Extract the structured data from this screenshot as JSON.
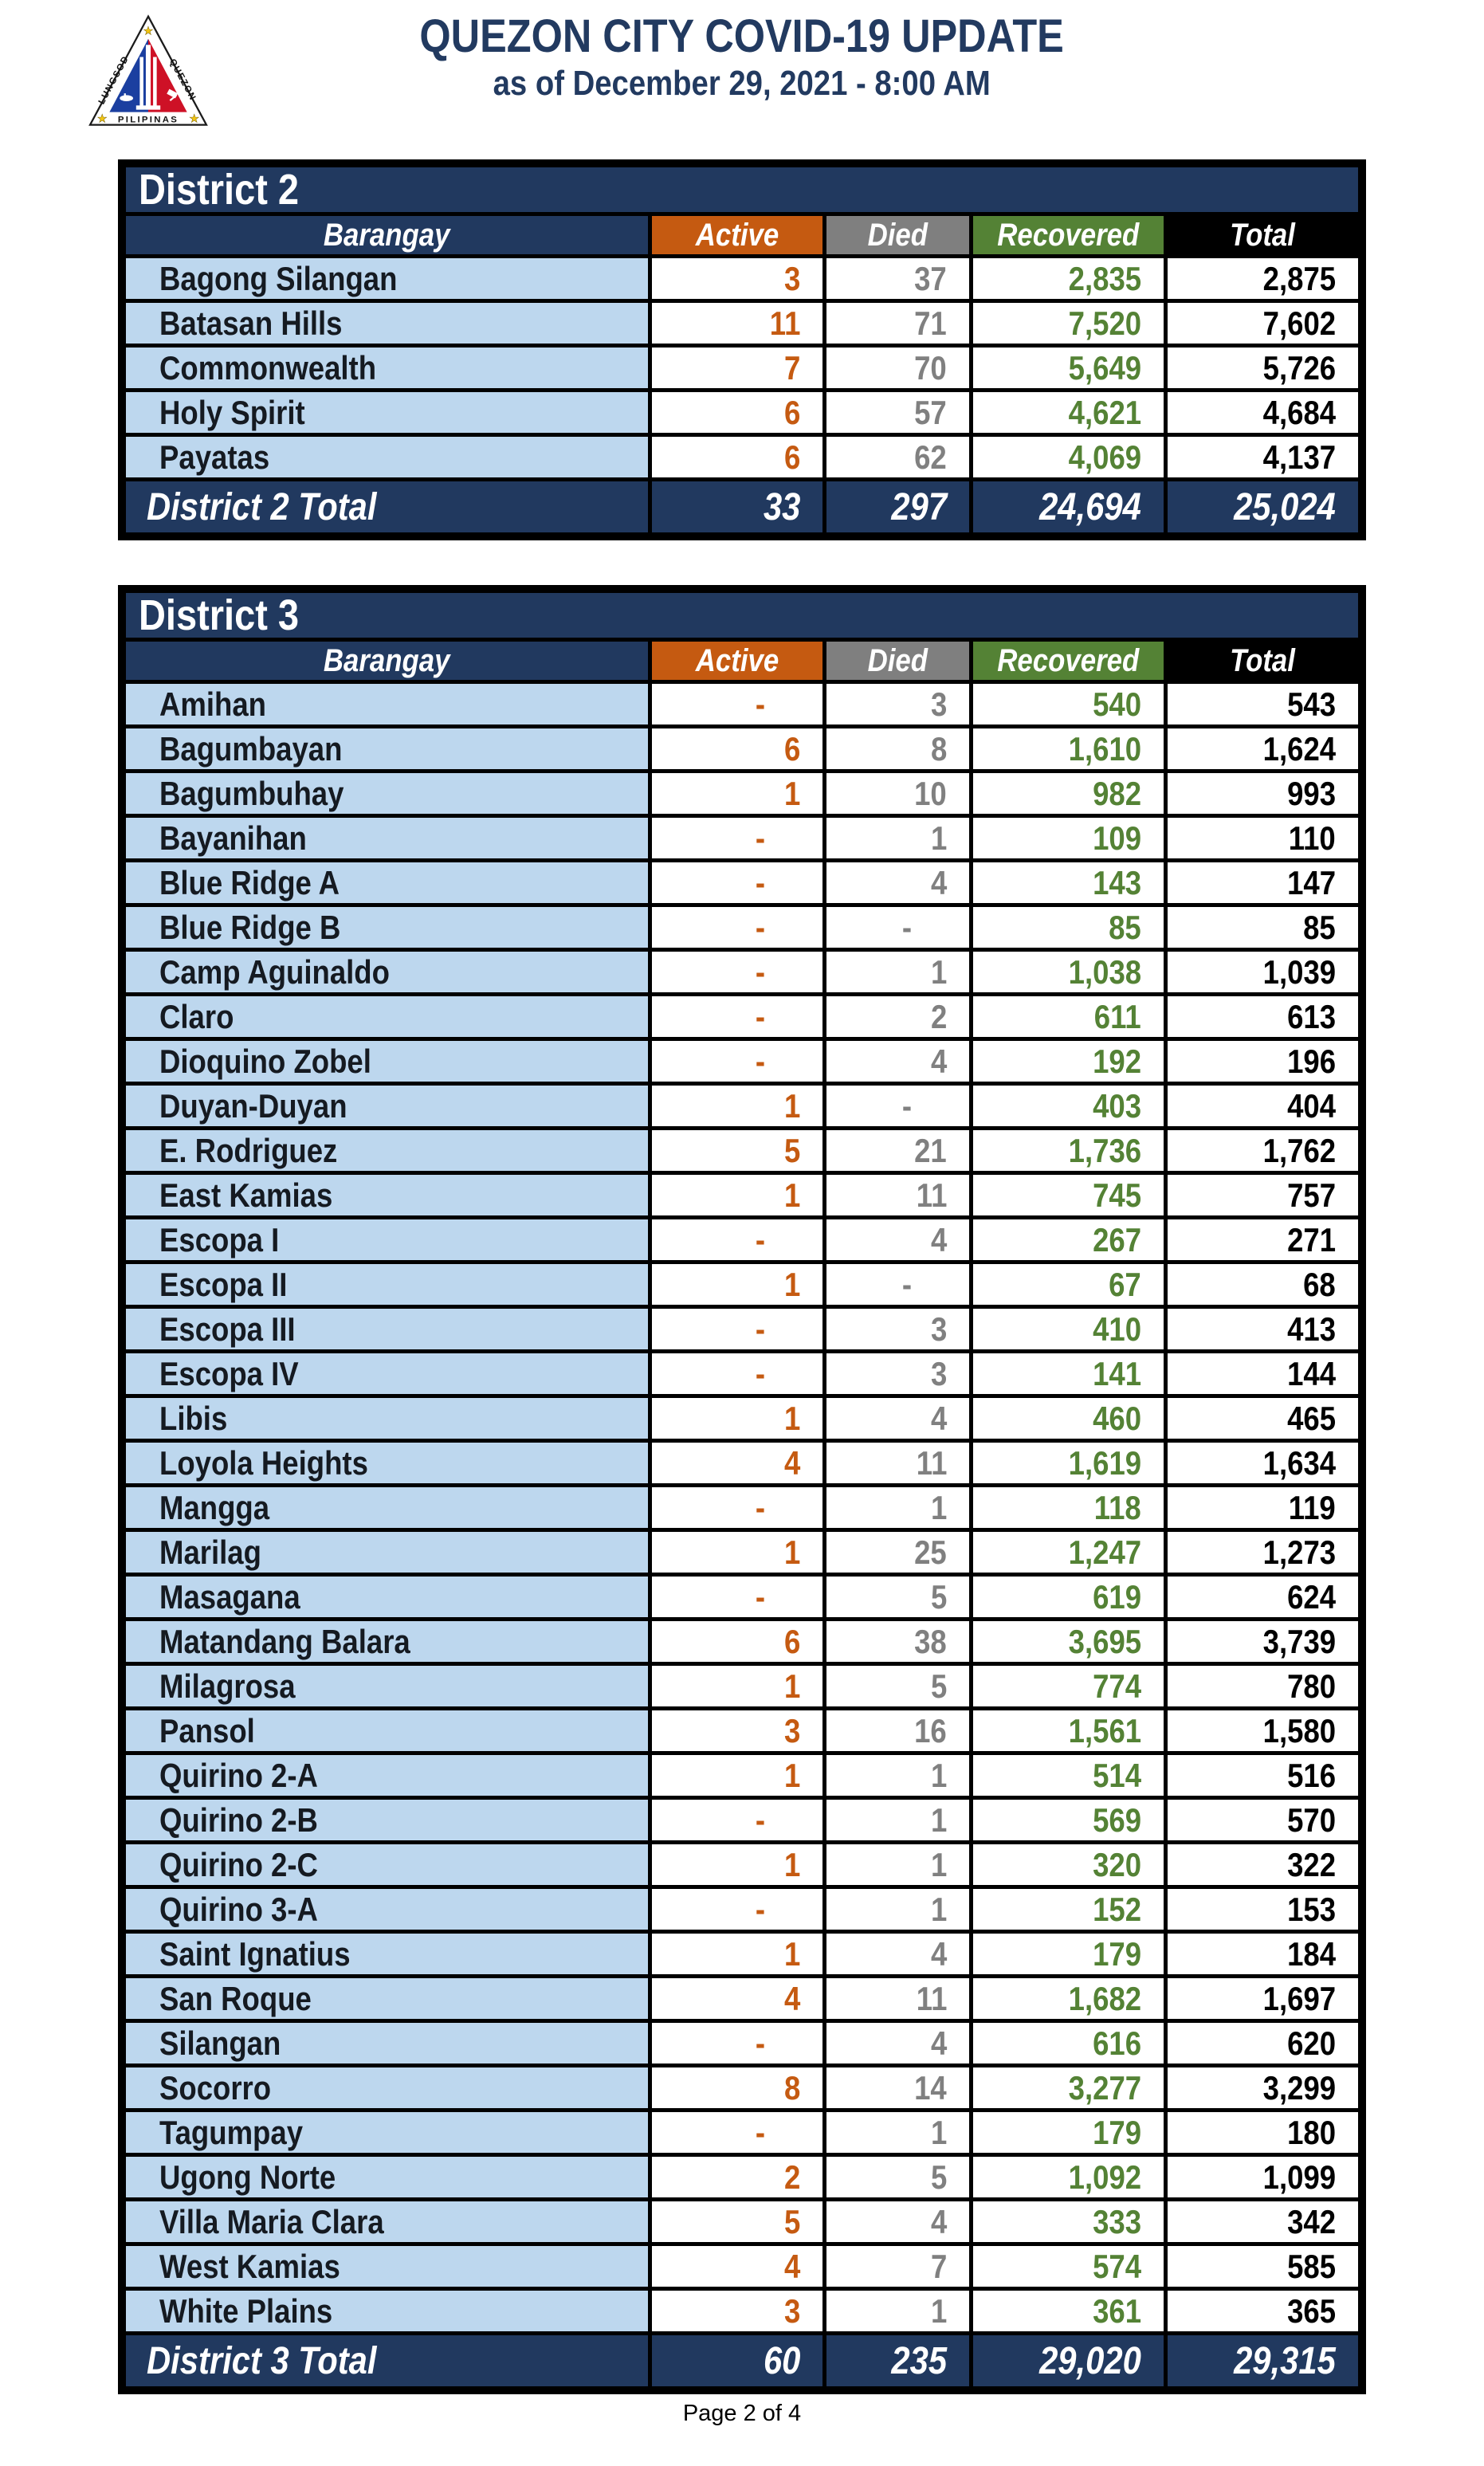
{
  "header": {
    "title": "QUEZON CITY COVID-19 UPDATE",
    "subtitle": "as of December 29, 2021 - 8:00 AM",
    "seal": {
      "icon": "quezon-city-seal",
      "text_left": "LUNGSOD",
      "text_right": "QUEZON",
      "text_bottom": "PILIPINAS"
    }
  },
  "columns": [
    "Barangay",
    "Active",
    "Died",
    "Recovered",
    "Total"
  ],
  "colors": {
    "navy": "#21395f",
    "row_blue": "#bdd7ee",
    "active_orange": "#c55a11",
    "died_gray_header": "#7f7f7f",
    "died_gray_value": "#808080",
    "recovered_green": "#548235",
    "total_black": "#000000"
  },
  "districts": [
    {
      "name": "District 2",
      "rows": [
        [
          "Bagong Silangan",
          "3",
          "37",
          "2,835",
          "2,875"
        ],
        [
          "Batasan Hills",
          "11",
          "71",
          "7,520",
          "7,602"
        ],
        [
          "Commonwealth",
          "7",
          "70",
          "5,649",
          "5,726"
        ],
        [
          "Holy Spirit",
          "6",
          "57",
          "4,621",
          "4,684"
        ],
        [
          "Payatas",
          "6",
          "62",
          "4,069",
          "4,137"
        ]
      ],
      "total": [
        "District 2 Total",
        "33",
        "297",
        "24,694",
        "25,024"
      ]
    },
    {
      "name": "District 3",
      "rows": [
        [
          "Amihan",
          "-",
          "3",
          "540",
          "543"
        ],
        [
          "Bagumbayan",
          "6",
          "8",
          "1,610",
          "1,624"
        ],
        [
          "Bagumbuhay",
          "1",
          "10",
          "982",
          "993"
        ],
        [
          "Bayanihan",
          "-",
          "1",
          "109",
          "110"
        ],
        [
          "Blue Ridge A",
          "-",
          "4",
          "143",
          "147"
        ],
        [
          "Blue Ridge B",
          "-",
          "-",
          "85",
          "85"
        ],
        [
          "Camp Aguinaldo",
          "-",
          "1",
          "1,038",
          "1,039"
        ],
        [
          "Claro",
          "-",
          "2",
          "611",
          "613"
        ],
        [
          "Dioquino Zobel",
          "-",
          "4",
          "192",
          "196"
        ],
        [
          "Duyan-Duyan",
          "1",
          "-",
          "403",
          "404"
        ],
        [
          "E. Rodriguez",
          "5",
          "21",
          "1,736",
          "1,762"
        ],
        [
          "East Kamias",
          "1",
          "11",
          "745",
          "757"
        ],
        [
          "Escopa I",
          "-",
          "4",
          "267",
          "271"
        ],
        [
          "Escopa II",
          "1",
          "-",
          "67",
          "68"
        ],
        [
          "Escopa III",
          "-",
          "3",
          "410",
          "413"
        ],
        [
          "Escopa IV",
          "-",
          "3",
          "141",
          "144"
        ],
        [
          "Libis",
          "1",
          "4",
          "460",
          "465"
        ],
        [
          "Loyola Heights",
          "4",
          "11",
          "1,619",
          "1,634"
        ],
        [
          "Mangga",
          "-",
          "1",
          "118",
          "119"
        ],
        [
          "Marilag",
          "1",
          "25",
          "1,247",
          "1,273"
        ],
        [
          "Masagana",
          "-",
          "5",
          "619",
          "624"
        ],
        [
          "Matandang Balara",
          "6",
          "38",
          "3,695",
          "3,739"
        ],
        [
          "Milagrosa",
          "1",
          "5",
          "774",
          "780"
        ],
        [
          "Pansol",
          "3",
          "16",
          "1,561",
          "1,580"
        ],
        [
          "Quirino 2-A",
          "1",
          "1",
          "514",
          "516"
        ],
        [
          "Quirino 2-B",
          "-",
          "1",
          "569",
          "570"
        ],
        [
          "Quirino 2-C",
          "1",
          "1",
          "320",
          "322"
        ],
        [
          "Quirino 3-A",
          "-",
          "1",
          "152",
          "153"
        ],
        [
          "Saint Ignatius",
          "1",
          "4",
          "179",
          "184"
        ],
        [
          "San Roque",
          "4",
          "11",
          "1,682",
          "1,697"
        ],
        [
          "Silangan",
          "-",
          "4",
          "616",
          "620"
        ],
        [
          "Socorro",
          "8",
          "14",
          "3,277",
          "3,299"
        ],
        [
          "Tagumpay",
          "-",
          "1",
          "179",
          "180"
        ],
        [
          "Ugong Norte",
          "2",
          "5",
          "1,092",
          "1,099"
        ],
        [
          "Villa Maria Clara",
          "5",
          "4",
          "333",
          "342"
        ],
        [
          "West Kamias",
          "4",
          "7",
          "574",
          "585"
        ],
        [
          "White Plains",
          "3",
          "1",
          "361",
          "365"
        ]
      ],
      "total": [
        "District 3 Total",
        "60",
        "235",
        "29,020",
        "29,315"
      ]
    }
  ],
  "footer": {
    "page_label": "Page 2 of 4"
  }
}
